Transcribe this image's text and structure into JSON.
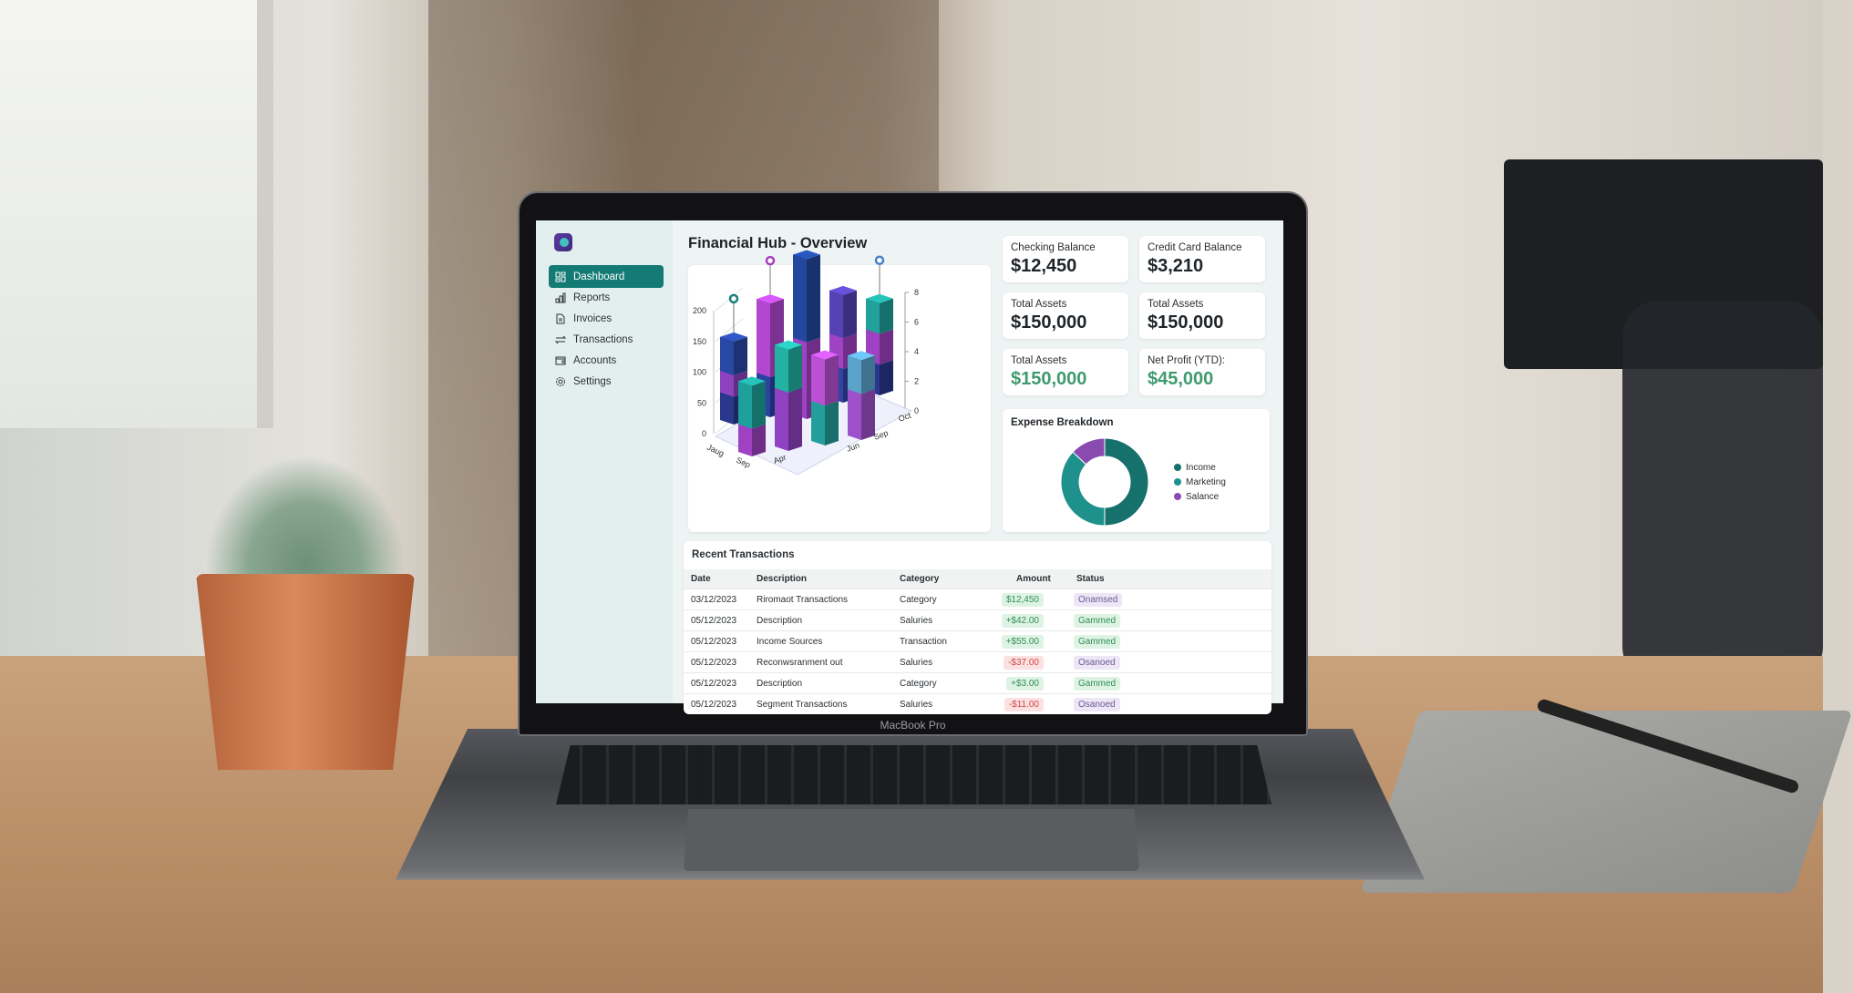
{
  "device": {
    "brand_label": "MacBook Pro"
  },
  "app": {
    "title": "Financial Hub - Overview",
    "sidebar": {
      "items": [
        {
          "label": "Dashboard",
          "icon": "dashboard-grid-icon",
          "active": true
        },
        {
          "label": "Reports",
          "icon": "bar-chart-icon"
        },
        {
          "label": "Invoices",
          "icon": "document-icon"
        },
        {
          "label": "Transactions",
          "icon": "swap-arrows-icon"
        },
        {
          "label": "Accounts",
          "icon": "wallet-icon"
        },
        {
          "label": "Settings",
          "icon": "gear-icon"
        }
      ]
    },
    "stats": [
      {
        "label": "Checking Balance",
        "value": "$12,450",
        "green": false
      },
      {
        "label": "Credit Card Balance",
        "value": "$3,210",
        "green": false
      },
      {
        "label": "Total Assets",
        "value": "$150,000",
        "green": false
      },
      {
        "label": "Total Assets",
        "value": "$150,000",
        "green": false
      },
      {
        "label": "Total Assets",
        "value": "$150,000",
        "green": true
      },
      {
        "label": "Net Profit (YTD):",
        "value": "$45,000",
        "green": true
      }
    ],
    "expense": {
      "title": "Expense Breakdown"
    },
    "transactions": {
      "title": "Recent Transactions",
      "columns": [
        "Date",
        "Description",
        "Category",
        "Amount",
        "Status"
      ],
      "rows": [
        {
          "date": "03/12/2023",
          "description": "Riromaot Transactions",
          "category": "Category",
          "amount": "$12,450",
          "amount_type": "positive",
          "status": "Onamsed",
          "status_type": "pending"
        },
        {
          "date": "05/12/2023",
          "description": "Description",
          "category": "Saluries",
          "amount": "+$42.00",
          "amount_type": "positive",
          "status": "Gammed",
          "status_type": "done"
        },
        {
          "date": "05/12/2023",
          "description": "Income Sources",
          "category": "Transaction",
          "amount": "+$55.00",
          "amount_type": "positive",
          "status": "Gammed",
          "status_type": "done"
        },
        {
          "date": "05/12/2023",
          "description": "Reconwsranment out",
          "category": "Saluries",
          "amount": "-$37.00",
          "amount_type": "negative",
          "status": "Osanoed",
          "status_type": "pending"
        },
        {
          "date": "05/12/2023",
          "description": "Description",
          "category": "Category",
          "amount": "+$3.00",
          "amount_type": "positive",
          "status": "Gammed",
          "status_type": "done"
        },
        {
          "date": "05/12/2023",
          "description": "Segment Transactions",
          "category": "Saluries",
          "amount": "-$11.00",
          "amount_type": "negative",
          "status": "Osanoed",
          "status_type": "pending"
        }
      ]
    },
    "colors": {
      "accent": "#137a74",
      "positive_bg": "#dff3e4",
      "positive_fg": "#2f8f55",
      "negative_bg": "#fbe1e1",
      "negative_fg": "#d04848",
      "pending_bg": "#ece6f7",
      "pending_fg": "#6b5a92"
    }
  },
  "chart_data": [
    {
      "type": "bar",
      "style": "3d-stacked",
      "categories": [
        "Jaug",
        "Sep",
        "Apr",
        "Jun",
        "Sep",
        "Oct"
      ],
      "yticks_left": [
        0,
        50,
        100,
        150,
        200
      ],
      "yticks_right": [
        0,
        2,
        4,
        6,
        8
      ],
      "ylim": [
        0,
        200
      ],
      "y2lim": [
        0,
        8
      ],
      "grid": true,
      "bars": [
        {
          "row": "back",
          "segments": [
            45,
            35,
            55
          ],
          "colors": [
            "#24307a",
            "#7b3aa6",
            "#233f8f"
          ],
          "marker": "#1a7f7a"
        },
        {
          "row": "back",
          "segments": [
            65,
            0,
            120
          ],
          "colors": [
            "#273a8c",
            "#273a8c",
            "#9b3fb5"
          ],
          "marker": "#a53fc0"
        },
        {
          "row": "back",
          "segments": [
            0,
            125,
            135
          ],
          "colors": [
            "#2b3b8f",
            "#8a3aaa",
            "#1e3f8a"
          ],
          "marker": null
        },
        {
          "row": "back",
          "segments": [
            55,
            50,
            70
          ],
          "colors": [
            "#2b3b8f",
            "#8b3bab",
            "#4a3a9e"
          ],
          "marker": null
        },
        {
          "row": "back",
          "segments": [
            50,
            50,
            50
          ],
          "colors": [
            "#25307c",
            "#8a3aa9",
            "#1c8c86"
          ],
          "marker": "#4a7fc7"
        },
        {
          "row": "front",
          "segments": [
            45,
            70
          ],
          "colors": [
            "#8a3aaa",
            "#1a8c86"
          ]
        },
        {
          "row": "front",
          "segments": [
            95,
            70
          ],
          "colors": [
            "#7d3aa8",
            "#1f9a8e"
          ]
        },
        {
          "row": "front",
          "segments": [
            65,
            75
          ],
          "colors": [
            "#1f8a86",
            "#a246b8"
          ]
        },
        {
          "row": "front",
          "segments": [
            75,
            55
          ],
          "colors": [
            "#8a46b0",
            "#4f8fb2"
          ]
        }
      ]
    },
    {
      "type": "pie",
      "style": "donut",
      "title": "Expense Breakdown",
      "slices": [
        {
          "label": "Income",
          "value": 50,
          "color": "#16706b"
        },
        {
          "label": "Marketing",
          "value": 37,
          "color": "#1f918c"
        },
        {
          "label": "Salance",
          "value": 13,
          "color": "#8a4bb0"
        }
      ],
      "legend": "right"
    }
  ]
}
